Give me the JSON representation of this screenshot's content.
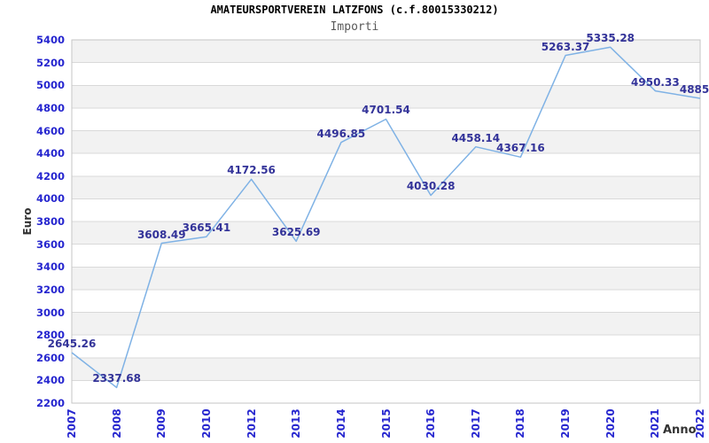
{
  "header": {
    "title": "AMATEURSPORTVEREIN LATZFONS (c.f.80015330212)",
    "subtitle": "Importi"
  },
  "axes": {
    "y_title": "Euro",
    "x_title": "Anno",
    "ytick_labels": [
      "5400",
      "5200",
      "5000",
      "4800",
      "4600",
      "4400",
      "4200",
      "4000",
      "3800",
      "3600",
      "3400",
      "3200",
      "3000",
      "2800",
      "2600",
      "2400",
      "2200"
    ]
  },
  "chart_data": {
    "type": "line",
    "title": "AMATEURSPORTVEREIN LATZFONS (c.f.80015330212)",
    "subtitle": "Importi",
    "xlabel": "Anno",
    "ylabel": "Euro",
    "categories": [
      "2007",
      "2008",
      "2009",
      "2010",
      "2012",
      "2013",
      "2014",
      "2015",
      "2016",
      "2017",
      "2018",
      "2019",
      "2020",
      "2021",
      "2022"
    ],
    "values": [
      2645.26,
      2337.68,
      3608.49,
      3665.41,
      4172.56,
      3625.69,
      4496.85,
      4701.54,
      4030.28,
      4458.14,
      4367.16,
      5263.37,
      5335.28,
      4950.33,
      4885.0
    ],
    "point_labels": [
      "2645.26",
      "2337.68",
      "3608.49",
      "3665.41",
      "4172.56",
      "3625.69",
      "4496.85",
      "4701.54",
      "4030.28",
      "4458.14",
      "4367.16",
      "5263.37",
      "5335.28",
      "4950.33",
      "4885.0"
    ],
    "ylim": [
      2200,
      5400
    ],
    "ytick_step": 200,
    "grid": true,
    "legend_position": "none",
    "band_alternating": true,
    "colors": {
      "line": "#7fb2e5",
      "tick_label": "#2626cf",
      "point_label": "#333399",
      "band": "#f2f2f2",
      "gridline": "#d9d9d9",
      "border": "#c6c6c6",
      "title": "#000000",
      "subtitle": "#595959",
      "axis_title": "#333333"
    }
  }
}
